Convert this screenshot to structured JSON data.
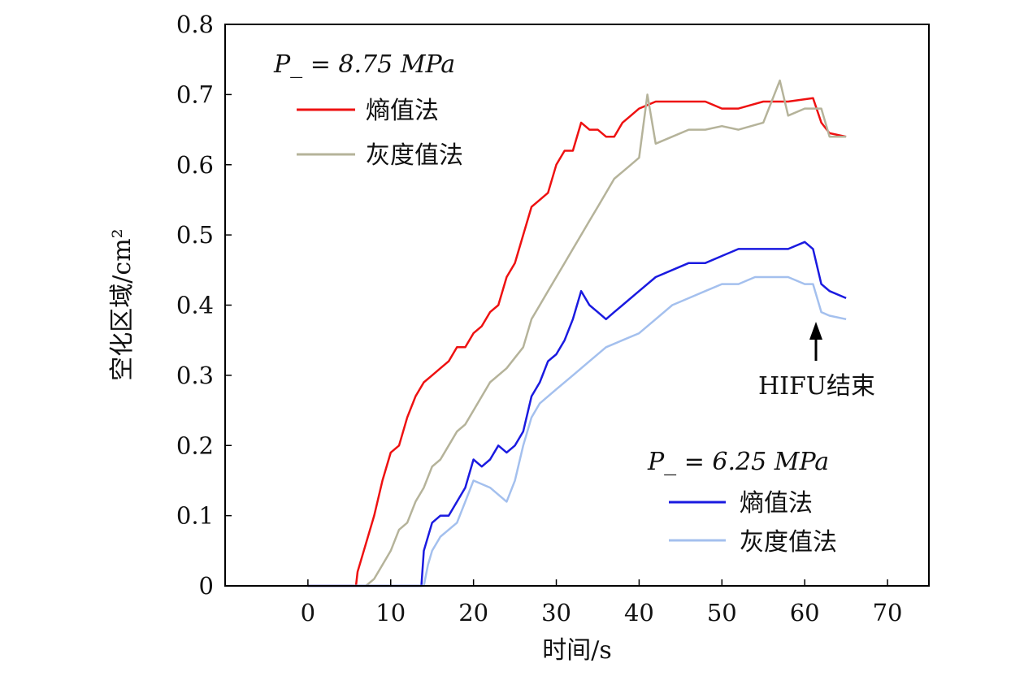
{
  "chart_data": {
    "type": "line",
    "xlabel": "时间/s",
    "ylabel": "空化区域/cm²",
    "xlim": [
      -10,
      75
    ],
    "ylim": [
      0,
      0.8
    ],
    "xticks": [
      0,
      10,
      20,
      30,
      40,
      50,
      60,
      70
    ],
    "yticks": [
      0,
      0.1,
      0.2,
      0.3,
      0.4,
      0.5,
      0.6,
      0.7,
      0.8
    ],
    "ytick_labels": [
      "0",
      "0.1",
      "0.2",
      "0.3",
      "0.4",
      "0.5",
      "0.6",
      "0.7",
      "0.8"
    ],
    "grid": false,
    "legends": [
      {
        "title": "P_ = 8.75 MPa",
        "placement": "top-left",
        "entries": [
          "熵值法",
          "灰度值法"
        ]
      },
      {
        "title": "P_ = 6.25 MPa",
        "placement": "bottom-right",
        "entries": [
          "熵值法",
          "灰度值法"
        ]
      }
    ],
    "annotation": {
      "text": "HIFU结束",
      "x": 61.5,
      "y": 0.39
    },
    "series": [
      {
        "name": "熵值法",
        "group": "P_ = 8.75 MPa",
        "color": "#ee1111",
        "x": [
          0,
          5.8,
          6,
          7,
          8,
          9,
          10,
          11,
          12,
          13,
          14,
          15,
          16,
          17,
          18,
          19,
          20,
          21,
          22,
          23,
          24,
          25,
          26,
          27,
          28,
          29,
          30,
          31,
          32,
          33,
          34,
          35,
          36,
          37,
          38,
          39,
          40,
          42,
          45,
          48,
          50,
          52,
          55,
          58,
          61,
          62,
          63,
          65
        ],
        "y": [
          0,
          0,
          0.02,
          0.06,
          0.1,
          0.15,
          0.19,
          0.2,
          0.24,
          0.27,
          0.29,
          0.3,
          0.31,
          0.32,
          0.34,
          0.34,
          0.36,
          0.37,
          0.39,
          0.4,
          0.44,
          0.46,
          0.5,
          0.54,
          0.55,
          0.56,
          0.6,
          0.62,
          0.62,
          0.66,
          0.65,
          0.65,
          0.64,
          0.64,
          0.66,
          0.67,
          0.68,
          0.69,
          0.69,
          0.69,
          0.68,
          0.68,
          0.69,
          0.69,
          0.695,
          0.66,
          0.645,
          0.64
        ]
      },
      {
        "name": "灰度值法",
        "group": "P_ = 8.75 MPa",
        "color": "#b5b39a",
        "x": [
          0,
          7,
          8,
          9,
          10,
          11,
          12,
          13,
          14,
          15,
          16,
          17,
          18,
          19,
          20,
          22,
          24,
          26,
          27,
          28,
          29,
          30,
          31,
          32,
          33,
          34,
          35,
          36,
          37,
          38,
          39,
          40,
          41,
          42,
          44,
          46,
          48,
          50,
          52,
          55,
          57,
          58,
          60,
          62,
          63,
          65
        ],
        "y": [
          0,
          0,
          0.01,
          0.03,
          0.05,
          0.08,
          0.09,
          0.12,
          0.14,
          0.17,
          0.18,
          0.2,
          0.22,
          0.23,
          0.25,
          0.29,
          0.31,
          0.34,
          0.38,
          0.4,
          0.42,
          0.44,
          0.46,
          0.48,
          0.5,
          0.52,
          0.54,
          0.56,
          0.58,
          0.59,
          0.6,
          0.61,
          0.7,
          0.63,
          0.64,
          0.65,
          0.65,
          0.655,
          0.65,
          0.66,
          0.72,
          0.67,
          0.68,
          0.68,
          0.64,
          0.64
        ]
      },
      {
        "name": "熵值法",
        "group": "P_ = 6.25 MPa",
        "color": "#1a1ae0",
        "x": [
          0,
          13.7,
          14,
          15,
          16,
          17,
          18,
          19,
          20,
          21,
          22,
          23,
          24,
          25,
          26,
          27,
          28,
          29,
          30,
          31,
          32,
          33,
          34,
          35,
          36,
          37,
          38,
          40,
          42,
          44,
          46,
          48,
          50,
          52,
          54,
          56,
          58,
          60,
          61,
          62,
          63,
          65
        ],
        "y": [
          0,
          0,
          0.05,
          0.09,
          0.1,
          0.1,
          0.12,
          0.14,
          0.18,
          0.17,
          0.18,
          0.2,
          0.19,
          0.2,
          0.22,
          0.27,
          0.29,
          0.32,
          0.33,
          0.35,
          0.38,
          0.42,
          0.4,
          0.39,
          0.38,
          0.39,
          0.4,
          0.42,
          0.44,
          0.45,
          0.46,
          0.46,
          0.47,
          0.48,
          0.48,
          0.48,
          0.48,
          0.49,
          0.48,
          0.43,
          0.42,
          0.41
        ]
      },
      {
        "name": "灰度值法",
        "group": "P_ = 6.25 MPa",
        "color": "#a4c0ee",
        "x": [
          0,
          14,
          14.5,
          15,
          16,
          18,
          19,
          20,
          22,
          24,
          25,
          26,
          27,
          28,
          30,
          32,
          34,
          36,
          38,
          40,
          42,
          44,
          46,
          48,
          50,
          52,
          54,
          56,
          58,
          60,
          61,
          62,
          63,
          65
        ],
        "y": [
          0,
          0,
          0.03,
          0.05,
          0.07,
          0.09,
          0.12,
          0.15,
          0.14,
          0.12,
          0.15,
          0.2,
          0.24,
          0.26,
          0.28,
          0.3,
          0.32,
          0.34,
          0.35,
          0.36,
          0.38,
          0.4,
          0.41,
          0.42,
          0.43,
          0.43,
          0.44,
          0.44,
          0.44,
          0.43,
          0.43,
          0.39,
          0.385,
          0.38
        ]
      }
    ]
  }
}
